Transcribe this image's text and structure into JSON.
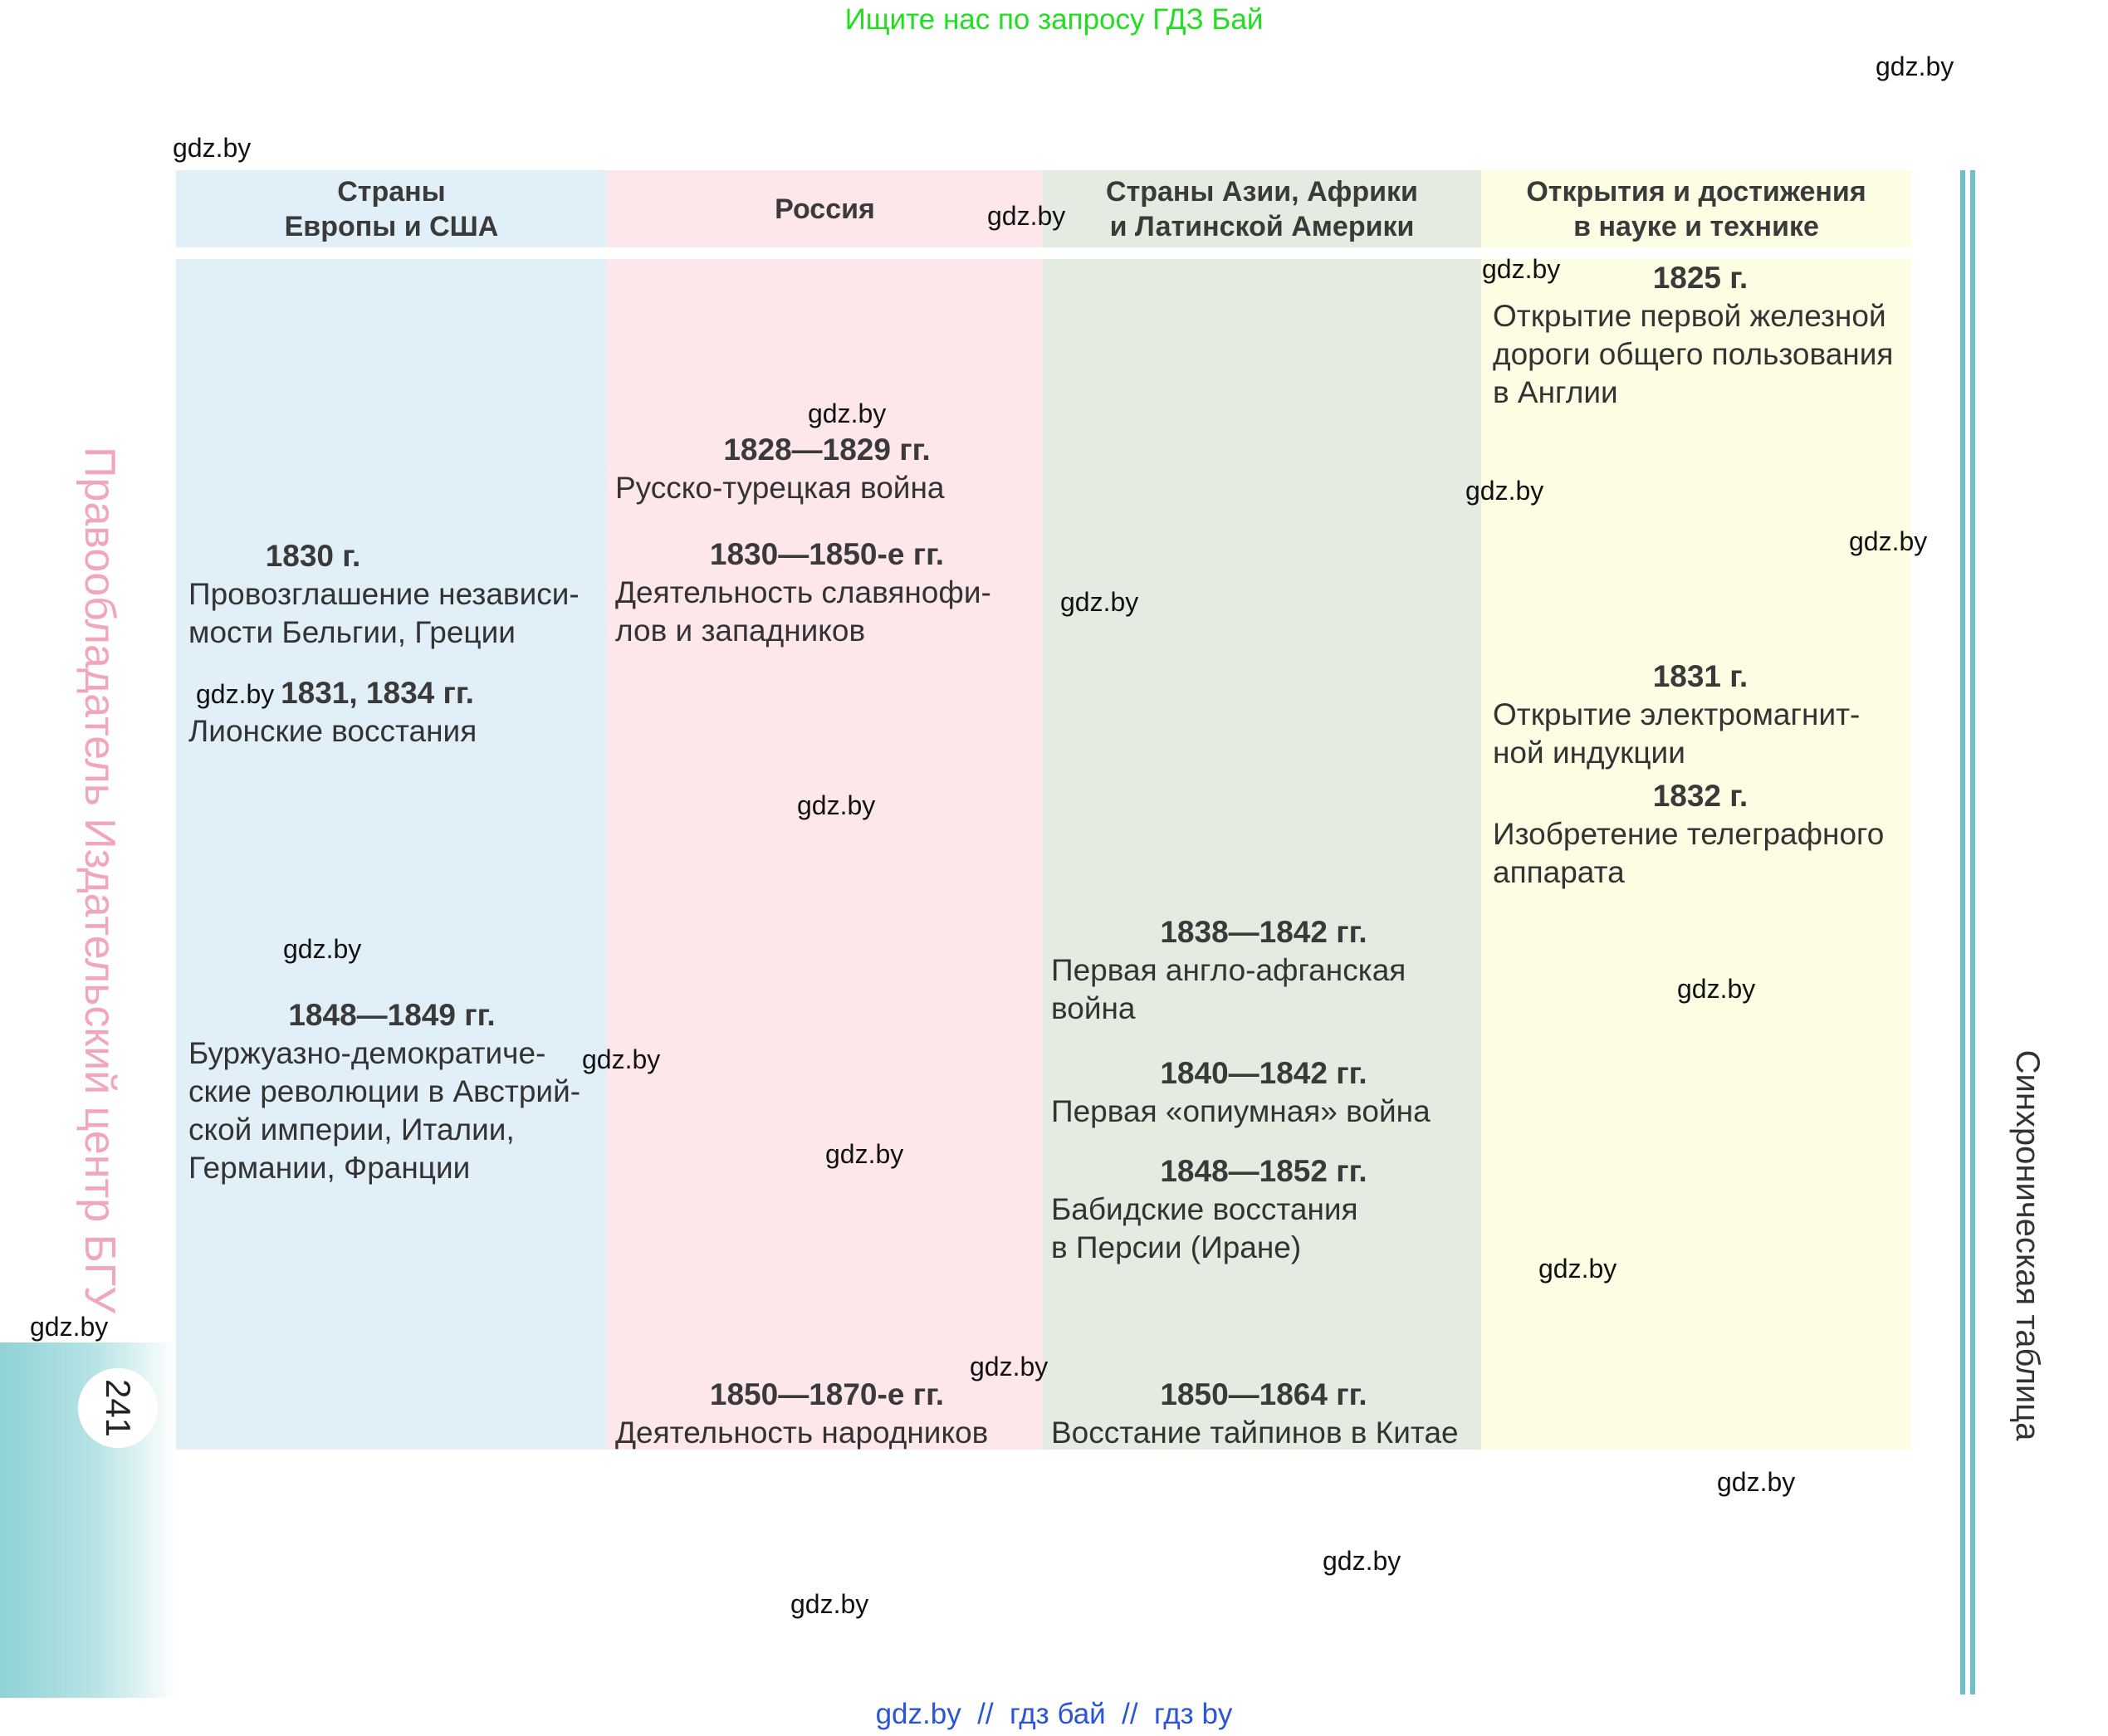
{
  "banner": "Ищите нас по запросу ГДЗ Бай",
  "watermark": "gdz.by",
  "columns": [
    {
      "title": "Страны\nЕвропы и США",
      "color": "#e1eff8"
    },
    {
      "title": "Россия",
      "color": "#fde7ea"
    },
    {
      "title": "Страны Азии, Африки\nи Латинской Америки",
      "color": "#e4ece2"
    },
    {
      "title": "Открытия и достижения\nв науке и технике",
      "color": "#fdfde3"
    }
  ],
  "events": {
    "europe": [
      {
        "year": "1830 г.",
        "text": "Провозглашение независи-\nмости Бельгии, Греции"
      },
      {
        "year": "1831, 1834 гг.",
        "text": "Лионские восстания"
      },
      {
        "year": "1848—1849 гг.",
        "text": "Буржуазно-демократиче-\nские революции в Австрий-\nской империи, Италии,\nГермании, Франции"
      }
    ],
    "russia": [
      {
        "year": "1828—1829 гг.",
        "text": "Русско-турецкая война"
      },
      {
        "year": "1830—1850-е гг.",
        "text": "Деятельность славянофи-\nлов и западников"
      },
      {
        "year": "1850—1870-е гг.",
        "text": "Деятельность народников"
      }
    ],
    "asia": [
      {
        "year": "1838—1842 гг.",
        "text": "Первая англо-афганская\nвойна"
      },
      {
        "year": "1840—1842 гг.",
        "text": "Первая «опиумная» война"
      },
      {
        "year": "1848—1852 гг.",
        "text": "Бабидские восстания\nв Персии (Иране)"
      },
      {
        "year": "1850—1864 гг.",
        "text": "Восстание тайпинов в Китае"
      }
    ],
    "science": [
      {
        "year": "1825 г.",
        "text": "Открытие первой железной\nдороги общего пользования\nв Англии"
      },
      {
        "year": "1831 г.",
        "text": "Открытие электромагнит-\nной индукции"
      },
      {
        "year": "1832 г.",
        "text": "Изобретение телеграфного\nаппарата"
      }
    ]
  },
  "side_left": "Правообладатель Издательский центр БГУ",
  "side_right": "Синхроническая таблица",
  "page_number": "241",
  "footer": "gdz.by  //  гдз бай  //  гдз by"
}
